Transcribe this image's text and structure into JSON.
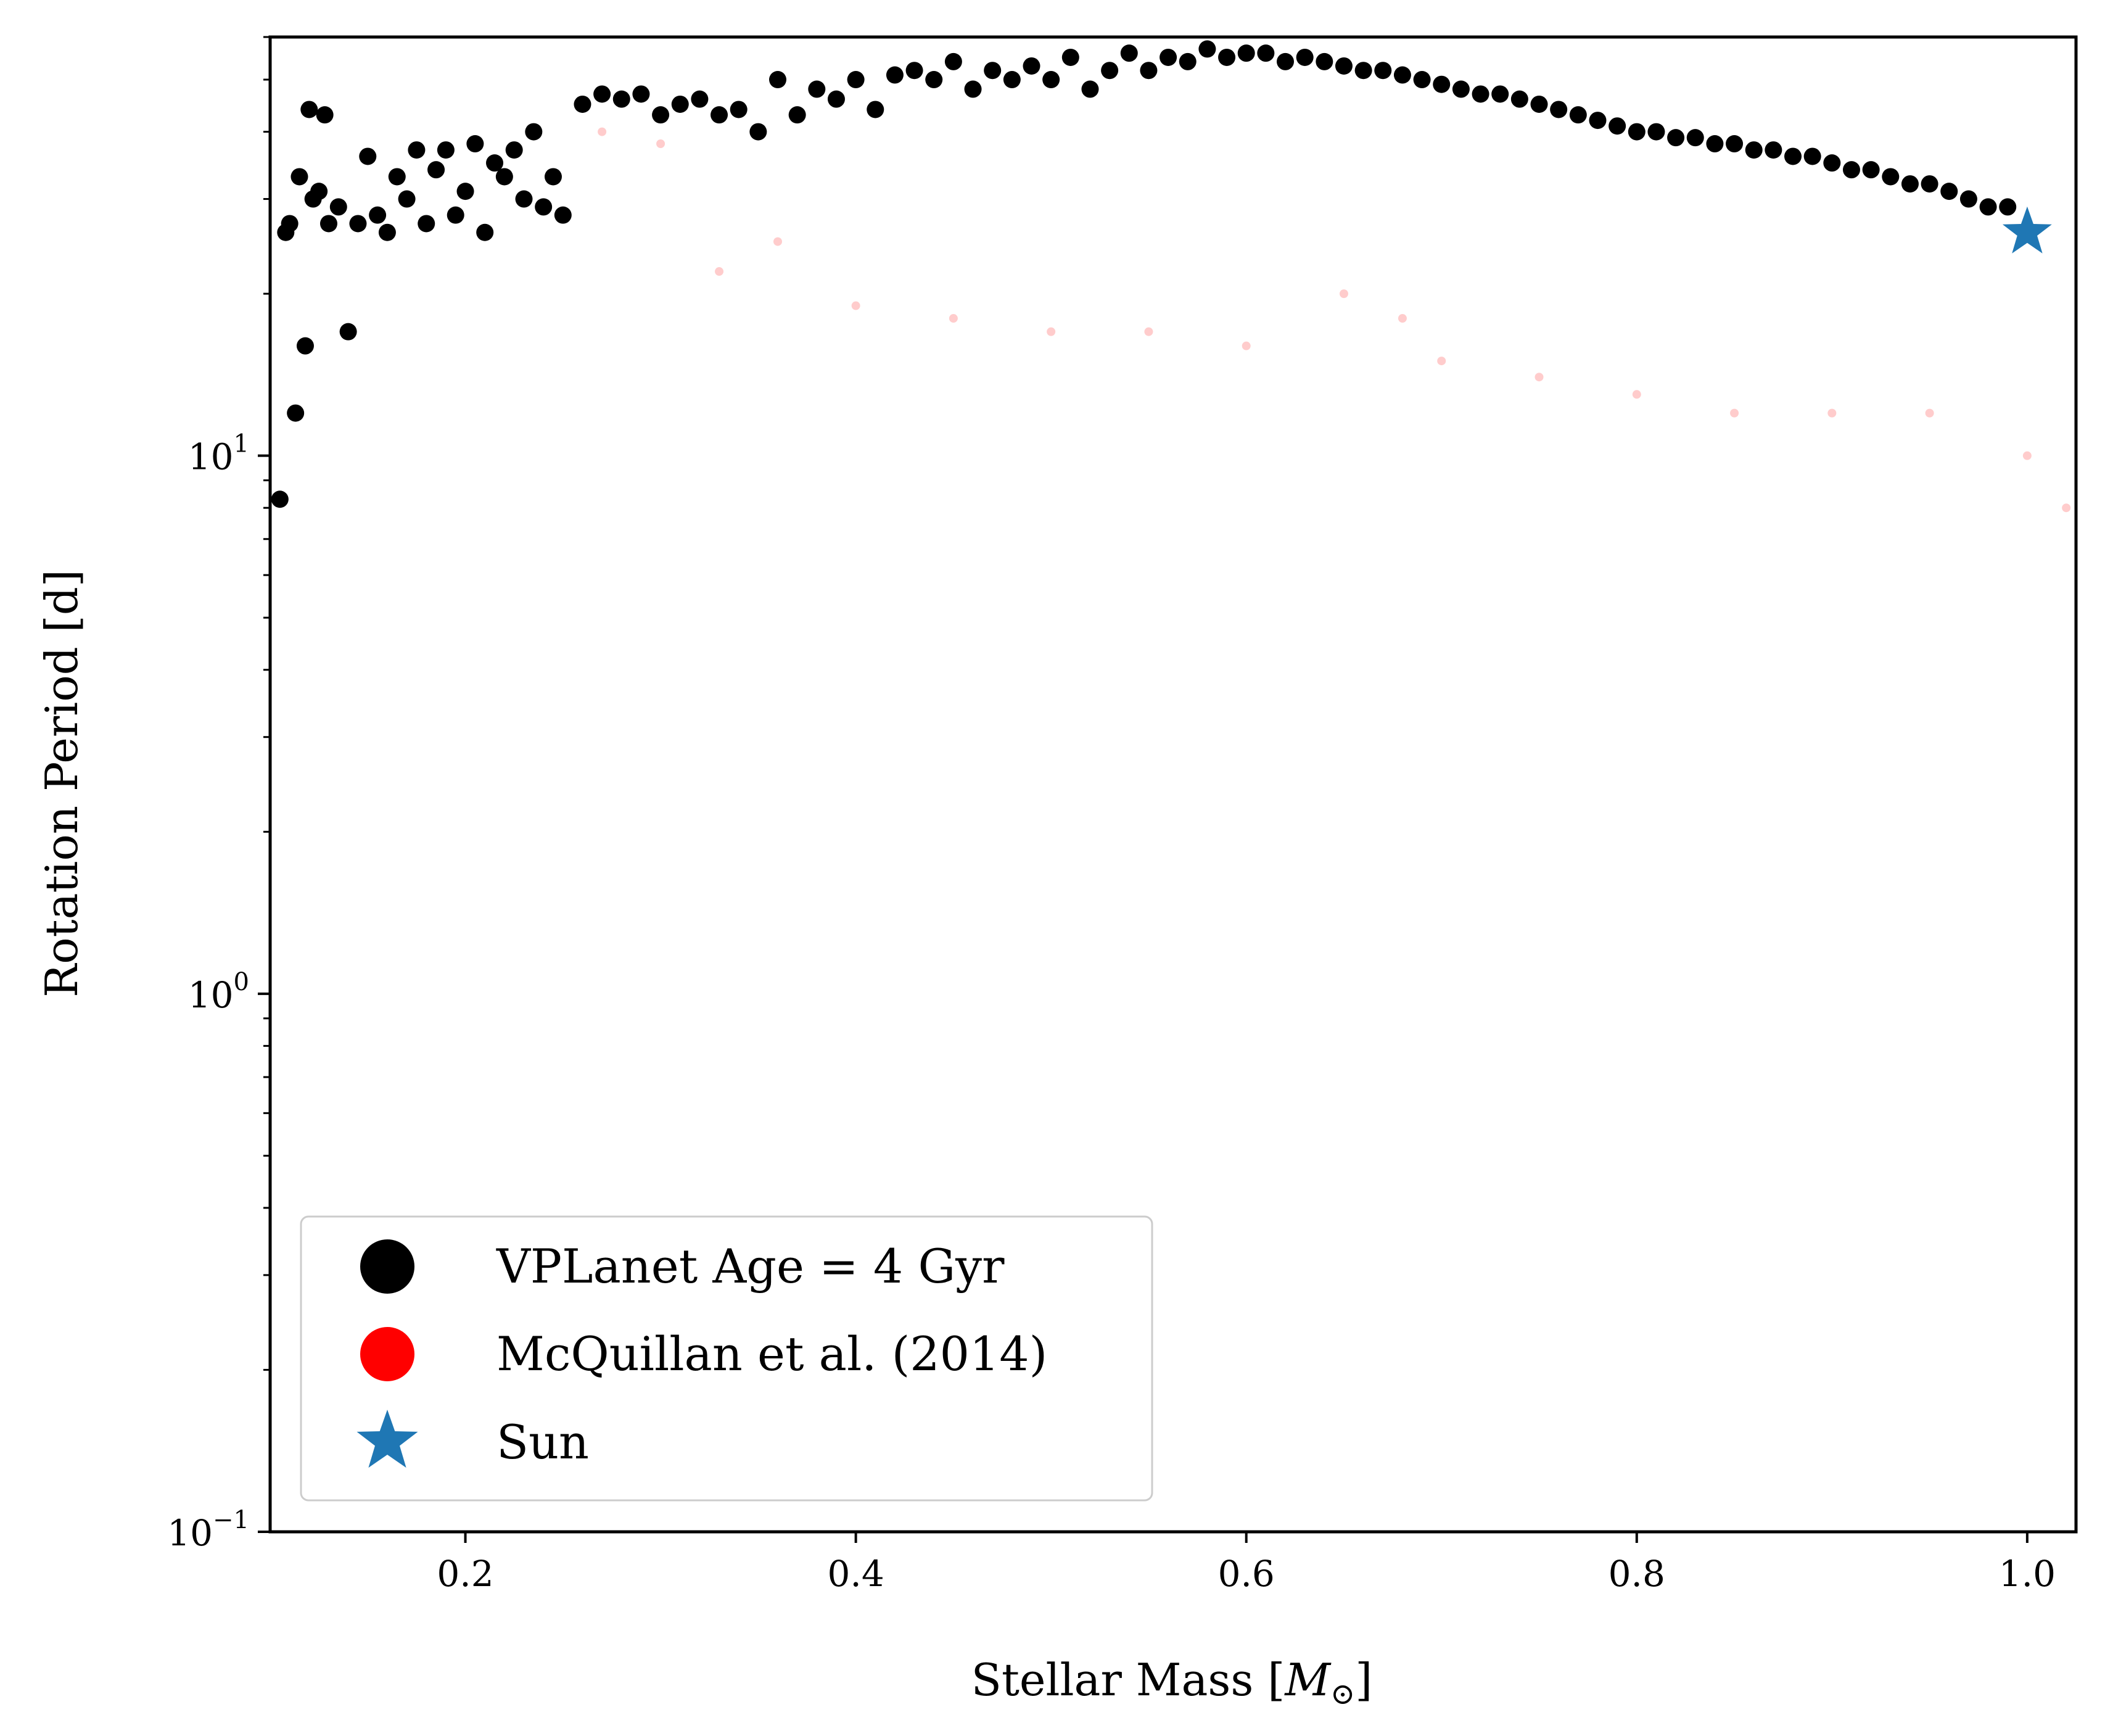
{
  "chart_data": {
    "type": "scatter",
    "xlabel_text": "Stellar Mass [",
    "xlabel_symbol": "M",
    "xlabel_sub": "⊙",
    "xlabel_close": "]",
    "ylabel": "Rotation Period [d]",
    "x_scale": "linear",
    "y_scale": "log",
    "xlim": [
      0.1,
      1.025
    ],
    "ylim": [
      0.1,
      60
    ],
    "x_ticks": [
      0.2,
      0.4,
      0.6,
      0.8,
      1.0
    ],
    "x_tick_labels": [
      "0.2",
      "0.4",
      "0.6",
      "0.8",
      "1.0"
    ],
    "y_ticks": [
      0.1,
      1,
      10
    ],
    "y_tick_labels": [
      {
        "base": "10",
        "exp": "−1"
      },
      {
        "base": "10",
        "exp": "0"
      },
      {
        "base": "10",
        "exp": "1"
      }
    ],
    "legend": {
      "placement": "lower-left",
      "entries": [
        {
          "label": "VPLanet Age = 4 Gyr",
          "marker": "circle",
          "color": "#000000"
        },
        {
          "label": "McQuillan et al. (2014)",
          "marker": "circle",
          "color": "#ff0000"
        },
        {
          "label": "Sun",
          "marker": "star",
          "color": "#1f77b4"
        }
      ]
    },
    "series": [
      {
        "name": "VPLanet Age = 4 Gyr",
        "color": "#000000",
        "marker": "circle",
        "x": [
          0.105,
          0.108,
          0.11,
          0.113,
          0.115,
          0.118,
          0.12,
          0.122,
          0.125,
          0.128,
          0.13,
          0.135,
          0.14,
          0.145,
          0.15,
          0.155,
          0.16,
          0.165,
          0.17,
          0.175,
          0.18,
          0.185,
          0.19,
          0.195,
          0.2,
          0.205,
          0.21,
          0.215,
          0.22,
          0.225,
          0.23,
          0.235,
          0.24,
          0.245,
          0.25,
          0.26,
          0.27,
          0.28,
          0.29,
          0.3,
          0.31,
          0.32,
          0.33,
          0.34,
          0.35,
          0.36,
          0.37,
          0.38,
          0.39,
          0.4,
          0.41,
          0.42,
          0.43,
          0.44,
          0.45,
          0.46,
          0.47,
          0.48,
          0.49,
          0.5,
          0.51,
          0.52,
          0.53,
          0.54,
          0.55,
          0.56,
          0.57,
          0.58,
          0.59,
          0.6,
          0.61,
          0.62,
          0.63,
          0.64,
          0.65,
          0.66,
          0.67,
          0.68,
          0.69,
          0.7,
          0.71,
          0.72,
          0.73,
          0.74,
          0.75,
          0.76,
          0.77,
          0.78,
          0.79,
          0.8,
          0.81,
          0.82,
          0.83,
          0.84,
          0.85,
          0.86,
          0.87,
          0.88,
          0.89,
          0.9,
          0.91,
          0.92,
          0.93,
          0.94,
          0.95,
          0.96,
          0.97,
          0.98,
          0.99
        ],
        "y": [
          8.3,
          26,
          27,
          12,
          33,
          16,
          44,
          30,
          31,
          43,
          27,
          29,
          17,
          27,
          36,
          28,
          26,
          33,
          30,
          37,
          27,
          34,
          37,
          28,
          31,
          38,
          26,
          35,
          33,
          37,
          30,
          40,
          29,
          33,
          28,
          45,
          47,
          46,
          47,
          43,
          45,
          46,
          43,
          44,
          40,
          50,
          43,
          48,
          46,
          50,
          44,
          51,
          52,
          50,
          54,
          48,
          52,
          50,
          53,
          50,
          55,
          48,
          52,
          56,
          52,
          55,
          54,
          57,
          55,
          56,
          56,
          54,
          55,
          54,
          53,
          52,
          52,
          51,
          50,
          49,
          48,
          47,
          47,
          46,
          45,
          44,
          43,
          42,
          41,
          40,
          40,
          39,
          39,
          38,
          38,
          37,
          37,
          36,
          36,
          35,
          34,
          34,
          33,
          32,
          32,
          31,
          30,
          29,
          29
        ]
      },
      {
        "name": "McQuillan et al. (2014)",
        "color": "#ff0000",
        "marker": "circle",
        "opacity": 0.2,
        "x": [
          0.27,
          0.3,
          0.33,
          0.36,
          0.4,
          0.45,
          0.5,
          0.55,
          0.6,
          0.65,
          0.68,
          0.7,
          0.75,
          0.8,
          0.85,
          0.9,
          0.95,
          1.0,
          1.02
        ],
        "y": [
          40,
          38,
          22,
          25,
          19,
          18,
          17,
          17,
          16,
          20,
          18,
          15,
          14,
          13,
          12,
          12,
          12,
          10,
          8
        ]
      },
      {
        "name": "Sun",
        "color": "#1f77b4",
        "marker": "star",
        "x": [
          1.0
        ],
        "y": [
          26
        ]
      }
    ]
  }
}
